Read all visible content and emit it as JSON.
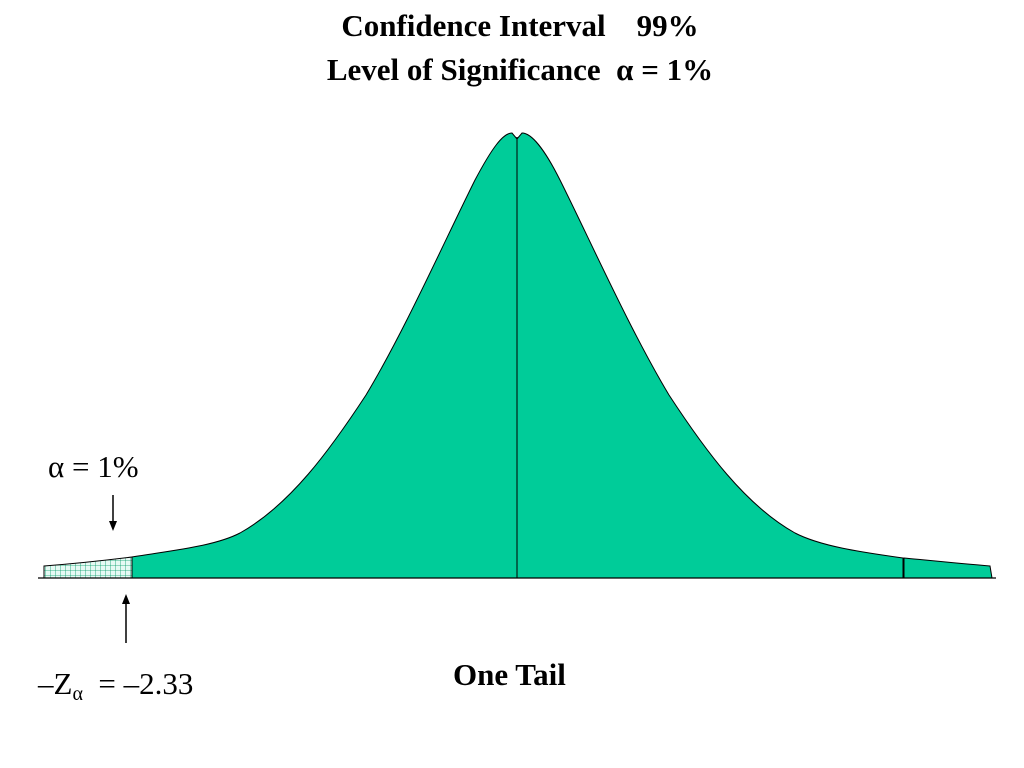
{
  "title": {
    "line1_text": "Confidence Interval",
    "line1_value": "99%",
    "line2_text": "Level of Significance",
    "line2_symbol": "α",
    "line2_value": "= 1%"
  },
  "annotations": {
    "alpha_symbol": "α",
    "alpha_value": " = 1%",
    "z_prefix": "–Z",
    "z_subscript": "α",
    "z_value": "  = –2.33",
    "tail_label": "One Tail"
  },
  "colors": {
    "curve_fill": "#00CC99",
    "tail_fill": "#E6FAF4",
    "tail_hatch": "#009966",
    "stroke": "#000000"
  }
}
